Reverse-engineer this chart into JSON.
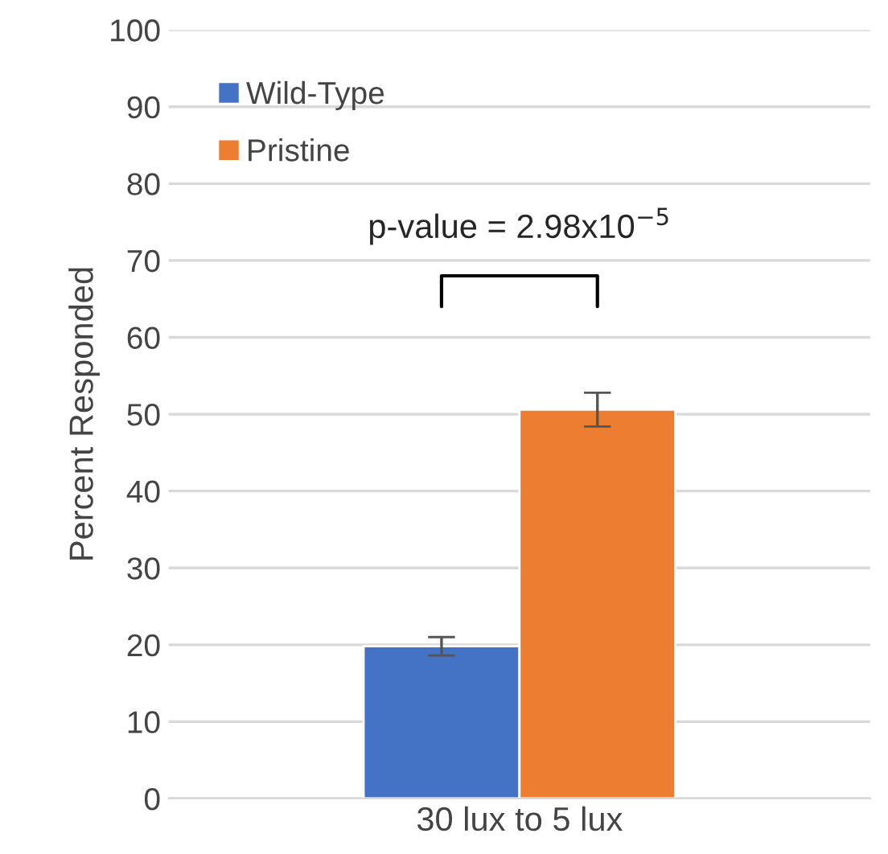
{
  "chart_data": {
    "type": "bar",
    "ylabel": "Percent Responded",
    "categories": [
      "30 lux to 5 lux"
    ],
    "series": [
      {
        "name": "Wild-Type",
        "color": "#4472c4",
        "values": [
          19.8
        ],
        "errors": [
          1.2
        ]
      },
      {
        "name": "Pristine",
        "color": "#ed7d31",
        "values": [
          50.6
        ],
        "errors": [
          2.2
        ]
      }
    ],
    "ylim": [
      0,
      100
    ],
    "yticks": [
      0,
      10,
      20,
      30,
      40,
      50,
      60,
      70,
      80,
      90,
      100
    ],
    "grid": "y",
    "legend": "top left",
    "annotations": [
      "p-value = 2.98x10$^{−5}$"
    ]
  }
}
